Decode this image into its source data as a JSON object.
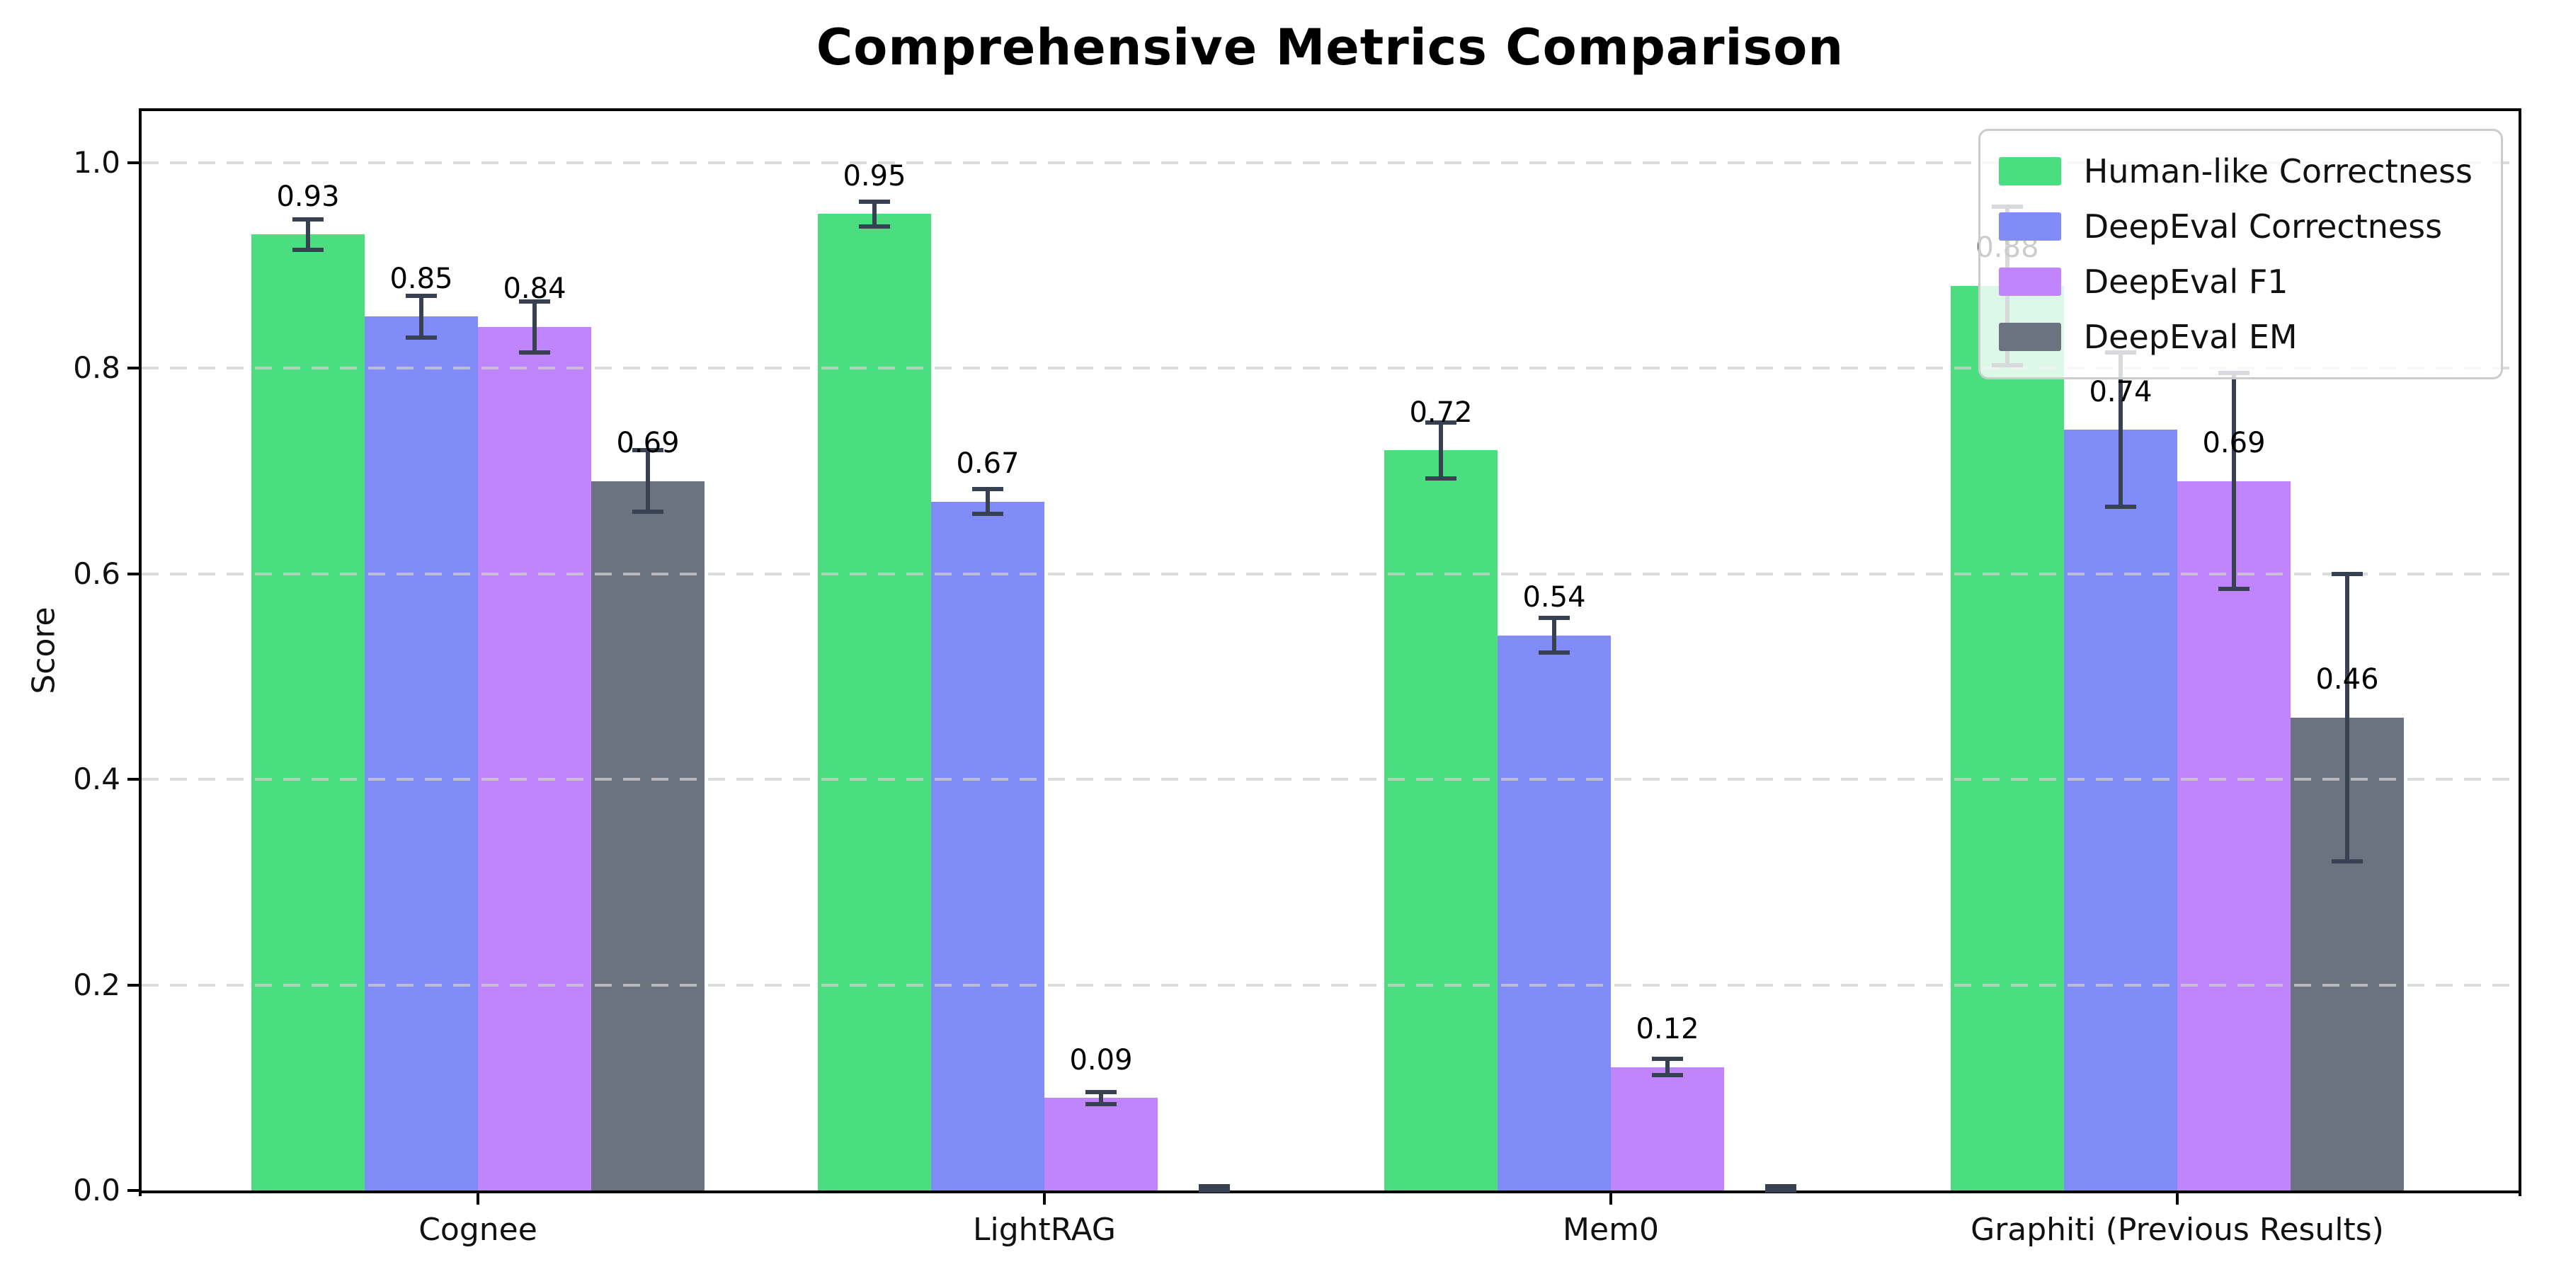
{
  "figure": {
    "background": "#ffffff"
  },
  "chart_data": {
    "type": "bar",
    "title": "Comprehensive Metrics Comparison",
    "ylabel": "Score",
    "xlabel": "",
    "categories": [
      "Cognee",
      "LightRAG",
      "Mem0",
      "Graphiti (Previous Results)"
    ],
    "series": [
      {
        "name": "Human-like Correctness",
        "color": "#4ade80",
        "values": [
          0.93,
          0.95,
          0.72,
          0.88
        ],
        "errors": [
          0.015,
          0.012,
          0.027,
          0.077
        ],
        "labels": [
          "0.93",
          "0.95",
          "0.72",
          "0.88"
        ]
      },
      {
        "name": "DeepEval Correctness",
        "color": "#818cf8",
        "values": [
          0.85,
          0.67,
          0.54,
          0.74
        ],
        "errors": [
          0.02,
          0.012,
          0.017,
          0.075
        ],
        "labels": [
          "0.85",
          "0.67",
          "0.54",
          "0.74"
        ]
      },
      {
        "name": "DeepEval F1",
        "color": "#c084fc",
        "values": [
          0.84,
          0.09,
          0.12,
          0.69
        ],
        "errors": [
          0.025,
          0.006,
          0.008,
          0.105
        ],
        "labels": [
          "0.84",
          "0.09",
          "0.12",
          "0.69"
        ]
      },
      {
        "name": "DeepEval EM",
        "color": "#6b7280",
        "values": [
          0.69,
          0.0,
          0.0,
          0.46
        ],
        "errors": [
          0.03,
          0.004,
          0.004,
          0.14
        ],
        "labels": [
          "0.69",
          "",
          "",
          "0.46"
        ]
      }
    ],
    "ytick_labels": [
      "0.0",
      "0.2",
      "0.4",
      "0.6",
      "0.8",
      "1.0"
    ],
    "ytick_values": [
      0.0,
      0.2,
      0.4,
      0.6,
      0.8,
      1.0
    ],
    "ylim": [
      0,
      1.05
    ],
    "grid": {
      "axis": "y",
      "style": "dashed",
      "color": "#cfcfcf"
    },
    "legend": {
      "position": "upper right",
      "entries": [
        "Human-like Correctness",
        "DeepEval Correctness",
        "DeepEval F1",
        "DeepEval EM"
      ]
    },
    "error_bar_color": "#374151",
    "axis_color": "#000000"
  }
}
